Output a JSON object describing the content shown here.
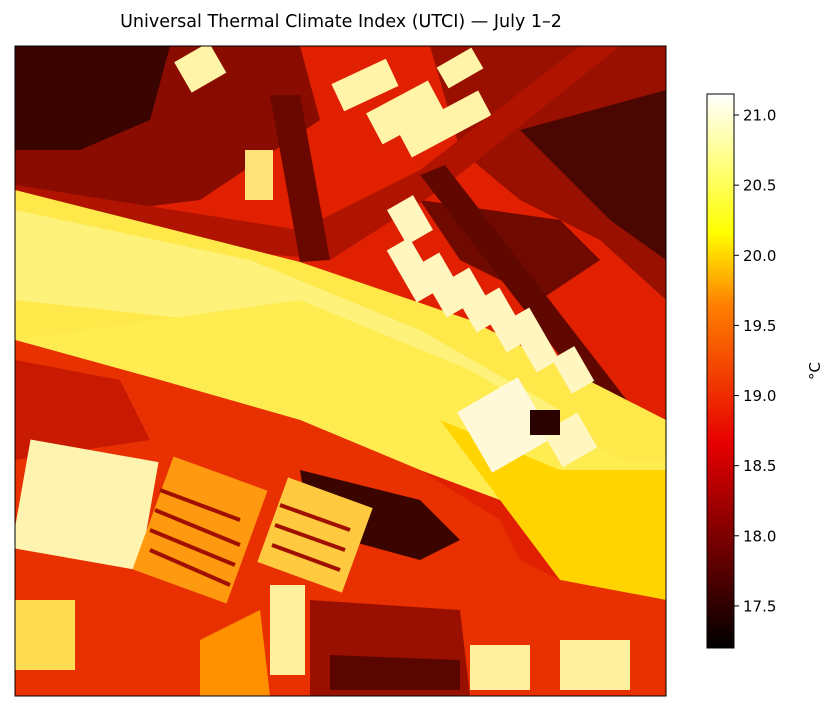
{
  "chart_data": {
    "type": "heatmap",
    "title": "Universal Thermal Climate Index (UTCI) — July 1–2",
    "xlabel": "",
    "ylabel": "",
    "colormap": "hot",
    "axes_ticks_visible": false,
    "colorbar": {
      "label": "°C",
      "vmin": 17.2,
      "vmax": 21.15,
      "ticks": [
        "17.5",
        "18.0",
        "18.5",
        "19.0",
        "19.5",
        "20.0",
        "20.5",
        "21.0"
      ],
      "tick_values": [
        17.5,
        18.0,
        18.5,
        19.0,
        19.5,
        20.0,
        20.5,
        21.0
      ]
    },
    "colors": {
      "hot_black": "#000000",
      "hot_red": "#e60000",
      "hot_orange": "#ff8000",
      "hot_yellow": "#ffff00",
      "hot_white": "#ffffff"
    }
  }
}
